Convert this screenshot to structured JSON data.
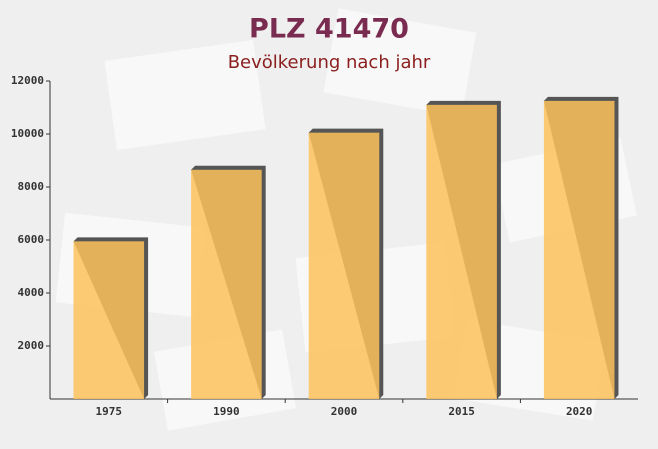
{
  "chart_data": {
    "type": "bar",
    "title": "PLZ 41470",
    "subtitle": "Bevölkerung nach jahr",
    "categories": [
      "1975",
      "1990",
      "2000",
      "2015",
      "2020"
    ],
    "values": [
      5950,
      8650,
      10050,
      11100,
      11250
    ],
    "color": "#fdc25a",
    "ylim": [
      0,
      12000
    ],
    "yticks": [
      2000,
      4000,
      6000,
      8000,
      10000,
      12000
    ],
    "grid": false
  }
}
